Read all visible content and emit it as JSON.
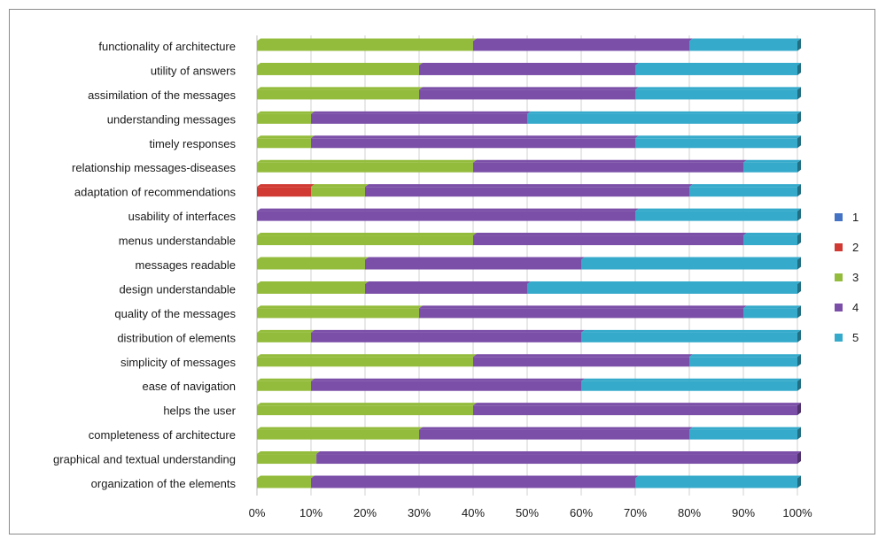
{
  "chart_data": {
    "type": "bar",
    "orientation": "horizontal",
    "stacked": "percent",
    "title": "",
    "xlabel": "",
    "ylabel": "",
    "xlim": [
      0,
      100
    ],
    "x_ticks": [
      "0%",
      "10%",
      "20%",
      "30%",
      "40%",
      "50%",
      "60%",
      "70%",
      "80%",
      "90%",
      "100%"
    ],
    "grid": "vertical",
    "legend_position": "right",
    "categories": [
      "functionality of architecture",
      "utility of answers",
      "assimilation of the messages",
      "understanding messages",
      "timely responses",
      "relationship messages-diseases",
      "adaptation of recommendations",
      "usability of interfaces",
      "menus understandable",
      "messages readable",
      "design understandable",
      "quality of the messages",
      "distribution of elements",
      "simplicity of messages",
      "ease of navigation",
      "helps the user",
      "completeness of architecture",
      "graphical and textual understanding",
      "organization of the elements"
    ],
    "series": [
      {
        "name": "1",
        "color": "#4472c4",
        "values": [
          0,
          0,
          0,
          0,
          0,
          0,
          0,
          0,
          0,
          0,
          0,
          0,
          0,
          0,
          0,
          0,
          0,
          0,
          0
        ]
      },
      {
        "name": "2",
        "color": "#d03a33",
        "values": [
          0,
          0,
          0,
          0,
          0,
          0,
          10,
          0,
          0,
          0,
          0,
          0,
          0,
          0,
          0,
          0,
          0,
          0,
          0
        ]
      },
      {
        "name": "3",
        "color": "#94bc3c",
        "values": [
          40,
          30,
          30,
          10,
          10,
          40,
          10,
          0,
          40,
          20,
          20,
          30,
          10,
          40,
          10,
          40,
          30,
          11,
          10
        ]
      },
      {
        "name": "4",
        "color": "#7b4fa8",
        "values": [
          40,
          40,
          40,
          40,
          60,
          50,
          60,
          70,
          50,
          40,
          30,
          60,
          50,
          40,
          50,
          60,
          50,
          89,
          60
        ]
      },
      {
        "name": "5",
        "color": "#35aacb",
        "values": [
          20,
          30,
          30,
          50,
          30,
          10,
          20,
          30,
          10,
          40,
          50,
          10,
          40,
          20,
          40,
          0,
          20,
          0,
          30
        ]
      }
    ]
  }
}
